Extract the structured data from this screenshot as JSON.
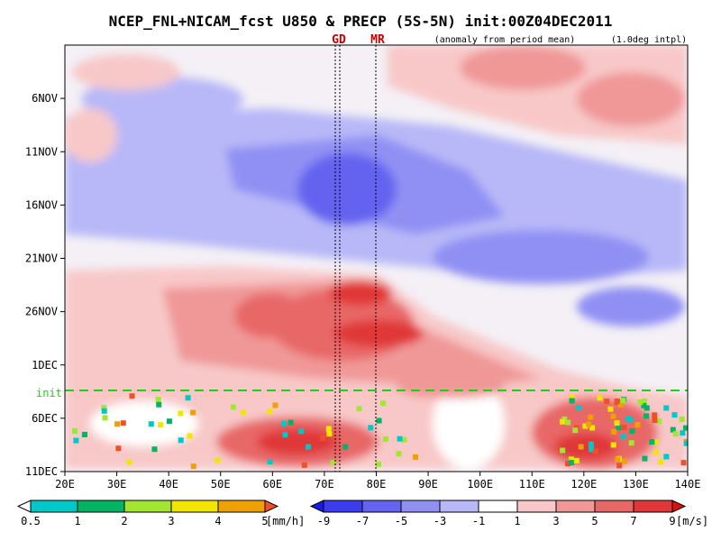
{
  "chart_data": {
    "type": "heatmap",
    "title": "NCEP_FNL+NICAM_fcst U850 & PRECP (5S-5N) init:00Z04DEC2011",
    "subtitle_left": "(anomaly from period mean)",
    "subtitle_right": "(1.0deg intpl)",
    "x_ticks": [
      "20E",
      "30E",
      "40E",
      "50E",
      "60E",
      "70E",
      "80E",
      "90E",
      "100E",
      "110E",
      "120E",
      "130E",
      "140E"
    ],
    "x_range_deg": [
      20,
      140
    ],
    "y_ticks": [
      "6NOV",
      "11NOV",
      "16NOV",
      "21NOV",
      "26NOV",
      "1DEC",
      "6DEC",
      "11DEC"
    ],
    "y_range": [
      "1NOV",
      "11DEC"
    ],
    "init_line": {
      "label": "init",
      "date": "4DEC",
      "color": "#22cc22"
    },
    "markers": [
      {
        "label": "GD",
        "lon": 73,
        "color": "#cc0000"
      },
      {
        "label": "MR",
        "lon": 80,
        "color": "#cc0000"
      }
    ],
    "u850_anomaly": {
      "units": "[m/s]",
      "colorbar_labels": [
        "-9",
        "-7",
        "-5",
        "-3",
        "-1",
        "1",
        "3",
        "5",
        "7",
        "9"
      ],
      "colors": [
        "#1a1ae6",
        "#3c3cf0",
        "#6464f0",
        "#9090f4",
        "#b8b8f8",
        "#ffffff",
        "#f8c8c8",
        "#f09898",
        "#e86868",
        "#e03838",
        "#dd1010"
      ]
    },
    "precip": {
      "units": "[mm/h]",
      "colorbar_labels": [
        "0.5",
        "1",
        "2",
        "3",
        "4",
        "5"
      ],
      "colors": [
        "#ffffff",
        "#00c8c8",
        "#00b464",
        "#a0e632",
        "#f0e600",
        "#f0a000",
        "#f05028"
      ]
    }
  }
}
